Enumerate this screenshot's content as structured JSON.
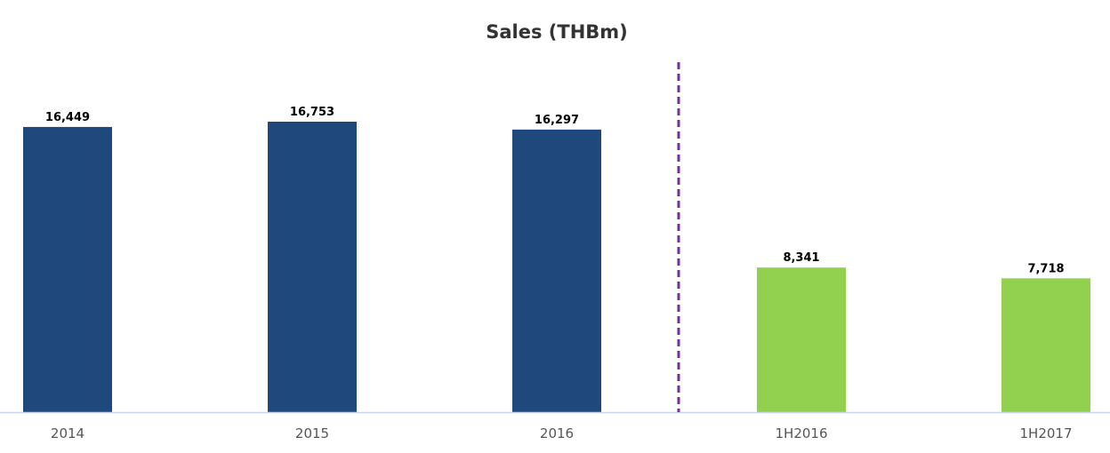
{
  "chart_data": {
    "type": "bar",
    "title": "Sales (THBm)",
    "xlabel": "",
    "ylabel": "",
    "categories": [
      "2014",
      "2015",
      "2016",
      "1H2016",
      "1H2017"
    ],
    "values": [
      16449,
      16753,
      16297,
      8341,
      7718
    ],
    "value_labels": [
      "16,449",
      "16,753",
      "16,297",
      "8,341",
      "7,718"
    ],
    "bar_colors": [
      "#1f497d",
      "#1f497d",
      "#1f497d",
      "#92d050",
      "#92d050"
    ],
    "ylim": [
      0,
      20000
    ],
    "grid": false,
    "legend": "none",
    "separator": {
      "after_category_index": 2,
      "style": "dashed",
      "color": "#7030a0"
    },
    "axis_line_color": "#ccd6eb"
  }
}
